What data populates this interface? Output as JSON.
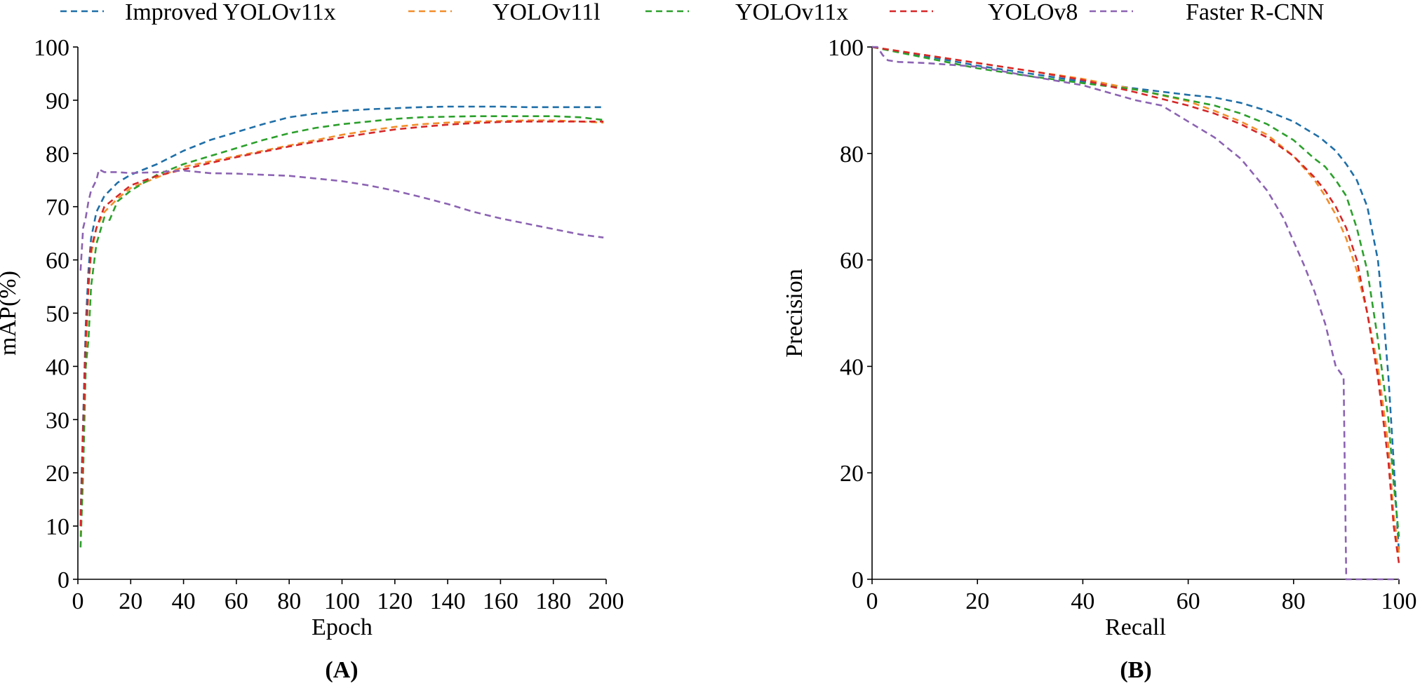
{
  "legend": [
    {
      "name": "Improved YOLOv11x",
      "color": "#1f6fa8"
    },
    {
      "name": "YOLOv11l",
      "color": "#f28e2b"
    },
    {
      "name": "YOLOv11x",
      "color": "#2ca02c"
    },
    {
      "name": "YOLOv8",
      "color": "#d62728"
    },
    {
      "name": "Faster R-CNN",
      "color": "#8c63b3"
    }
  ],
  "chart_data": [
    {
      "id": "A",
      "type": "line",
      "panel_label": "(A)",
      "xlabel": "Epoch",
      "ylabel": "mAP(%)",
      "xlim": [
        0,
        200
      ],
      "ylim": [
        0,
        100
      ],
      "xticks": [
        0,
        20,
        40,
        60,
        80,
        100,
        120,
        140,
        160,
        180,
        200
      ],
      "yticks": [
        0,
        10,
        20,
        30,
        40,
        50,
        60,
        70,
        80,
        90,
        100
      ],
      "series": [
        {
          "name": "Improved YOLOv11x",
          "color": "#1f6fa8",
          "x": [
            1,
            2,
            3,
            4,
            5,
            7,
            10,
            15,
            20,
            30,
            40,
            50,
            60,
            70,
            80,
            90,
            100,
            110,
            120,
            130,
            140,
            150,
            160,
            170,
            180,
            190,
            199
          ],
          "y": [
            12,
            30,
            48,
            58,
            64,
            69,
            72,
            74.5,
            76,
            78,
            80.5,
            82.5,
            84,
            85.5,
            86.8,
            87.5,
            88,
            88.3,
            88.5,
            88.7,
            88.8,
            88.8,
            88.8,
            88.7,
            88.7,
            88.7,
            88.7
          ]
        },
        {
          "name": "YOLOv11l",
          "color": "#f28e2b",
          "x": [
            1,
            2,
            3,
            4,
            5,
            7,
            10,
            15,
            20,
            30,
            40,
            50,
            60,
            70,
            80,
            90,
            100,
            110,
            120,
            130,
            140,
            150,
            160,
            170,
            180,
            190,
            199
          ],
          "y": [
            8,
            25,
            42,
            55,
            61,
            66,
            69,
            71.5,
            73.5,
            75.5,
            77.5,
            78.5,
            79.5,
            80.5,
            81.5,
            82.5,
            83.5,
            84.3,
            85,
            85.5,
            85.8,
            86,
            86.1,
            86.2,
            86.2,
            86,
            85.8
          ]
        },
        {
          "name": "YOLOv11x",
          "color": "#2ca02c",
          "x": [
            1,
            2,
            3,
            4,
            5,
            7,
            10,
            12,
            15,
            20,
            30,
            40,
            50,
            60,
            70,
            80,
            90,
            100,
            110,
            120,
            130,
            140,
            150,
            160,
            170,
            180,
            190,
            199
          ],
          "y": [
            6,
            20,
            40,
            45,
            55,
            63,
            68,
            67.5,
            71,
            73,
            76,
            78,
            79.5,
            81,
            82.5,
            83.8,
            84.8,
            85.5,
            86,
            86.5,
            86.8,
            86.9,
            87,
            87,
            87,
            87,
            86.8,
            86.3
          ]
        },
        {
          "name": "YOLOv8",
          "color": "#d62728",
          "x": [
            1,
            2,
            3,
            4,
            5,
            7,
            10,
            15,
            20,
            30,
            40,
            50,
            60,
            70,
            80,
            90,
            100,
            110,
            120,
            130,
            140,
            150,
            160,
            170,
            180,
            190,
            199
          ],
          "y": [
            10,
            28,
            45,
            55,
            62,
            66,
            70,
            72,
            74,
            75.8,
            77,
            78.2,
            79.3,
            80.3,
            81.3,
            82.2,
            83,
            83.8,
            84.5,
            85,
            85.4,
            85.7,
            85.9,
            86,
            86,
            86,
            86
          ]
        },
        {
          "name": "Faster R-CNN",
          "color": "#8c63b3",
          "x": [
            1,
            2,
            3,
            4,
            5,
            7,
            8,
            10,
            15,
            20,
            30,
            40,
            50,
            60,
            70,
            80,
            90,
            100,
            110,
            120,
            130,
            140,
            150,
            160,
            170,
            180,
            190,
            199
          ],
          "y": [
            58,
            66,
            68,
            71,
            73,
            75,
            77,
            76.5,
            76.5,
            76.3,
            76.5,
            76.8,
            76.3,
            76.2,
            76,
            75.8,
            75.3,
            74.8,
            74,
            73,
            71.8,
            70.5,
            69,
            67.8,
            66.8,
            65.8,
            64.8,
            64.2
          ]
        }
      ]
    },
    {
      "id": "B",
      "type": "line",
      "panel_label": "(B)",
      "xlabel": "Recall",
      "ylabel": "Precision",
      "xlim": [
        0,
        100
      ],
      "ylim": [
        0,
        100
      ],
      "xticks": [
        0,
        20,
        40,
        60,
        80,
        100
      ],
      "yticks": [
        0,
        20,
        40,
        60,
        80,
        100
      ],
      "series": [
        {
          "name": "Improved YOLOv11x",
          "color": "#1f6fa8",
          "x": [
            0,
            10,
            20,
            30,
            40,
            50,
            60,
            65,
            70,
            75,
            80,
            85,
            88,
            90,
            92,
            94,
            96,
            97,
            98,
            99,
            100
          ],
          "y": [
            100,
            98.3,
            96.5,
            95,
            93.5,
            92.2,
            91,
            90.5,
            89.5,
            88,
            86,
            83,
            80.5,
            78,
            75,
            70,
            60,
            50,
            38,
            22,
            5
          ]
        },
        {
          "name": "YOLOv11l",
          "color": "#f28e2b",
          "x": [
            0,
            10,
            20,
            30,
            40,
            50,
            60,
            65,
            70,
            75,
            80,
            84,
            86,
            88,
            90,
            92,
            94,
            96,
            98,
            99,
            100
          ],
          "y": [
            100,
            98.5,
            97,
            95.5,
            94,
            92,
            89.8,
            88,
            86,
            83.5,
            79.5,
            75,
            72,
            68.5,
            64,
            58,
            50,
            40,
            25,
            12,
            5
          ]
        },
        {
          "name": "YOLOv11x",
          "color": "#2ca02c",
          "x": [
            0,
            10,
            20,
            30,
            40,
            50,
            60,
            65,
            70,
            75,
            80,
            84,
            86,
            88,
            90,
            92,
            94,
            96,
            98,
            99,
            100
          ],
          "y": [
            100,
            98,
            96,
            94.5,
            93.2,
            92,
            90,
            89,
            87.5,
            85.5,
            82.5,
            79,
            77.5,
            75,
            72,
            66,
            58,
            45,
            30,
            18,
            8
          ]
        },
        {
          "name": "YOLOv8",
          "color": "#d62728",
          "x": [
            0,
            10,
            20,
            30,
            40,
            50,
            60,
            65,
            70,
            75,
            80,
            84,
            86,
            88,
            90,
            92,
            94,
            96,
            98,
            99,
            100
          ],
          "y": [
            100,
            98.5,
            97,
            95.5,
            93.8,
            91.5,
            89,
            87.5,
            85.5,
            83,
            79.5,
            75.5,
            73,
            70,
            66,
            60,
            50,
            38,
            22,
            10,
            3
          ]
        },
        {
          "name": "Faster R-CNN",
          "color": "#8c63b3",
          "x": [
            0,
            1,
            2,
            3,
            5,
            10,
            20,
            30,
            40,
            50,
            55,
            60,
            65,
            70,
            75,
            78,
            80,
            82,
            84,
            86,
            88,
            89.5,
            90,
            95,
            100
          ],
          "y": [
            100,
            100,
            98.5,
            97.5,
            97.2,
            97,
            96.3,
            94.5,
            92.8,
            90,
            89,
            86,
            83,
            79,
            73,
            68,
            63.5,
            59,
            54,
            48,
            40,
            38,
            0,
            0,
            0
          ]
        }
      ]
    }
  ]
}
